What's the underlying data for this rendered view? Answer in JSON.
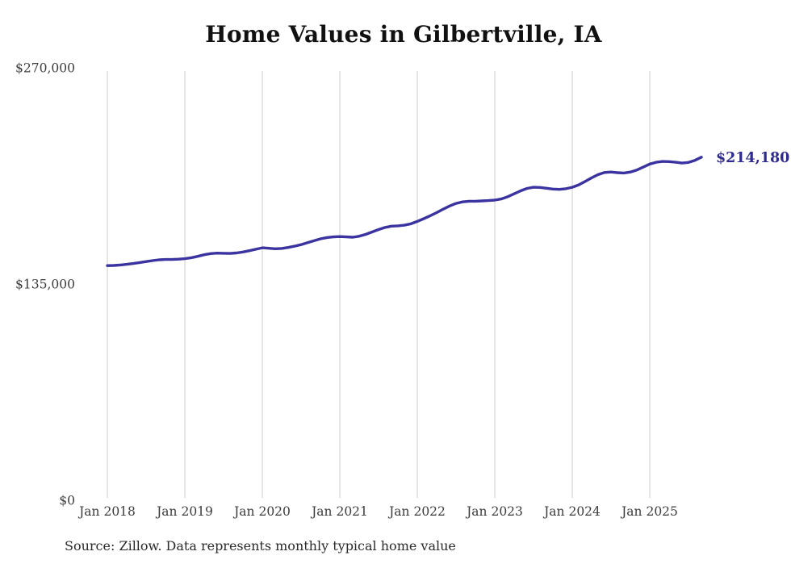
{
  "header": {
    "title": "Home Values in Gilbertville, IA"
  },
  "footer": {
    "source": "Source: Zillow. Data represents monthly typical home value"
  },
  "colors": {
    "line": "#3a33a0",
    "end_label": "#2f2a8e",
    "grid": "#cccccc",
    "axis_text": "#3c3c3c",
    "title_text": "#111111",
    "background": "#ffffff"
  },
  "chart_data": {
    "type": "line",
    "title": "Home Values in Gilbertville, IA",
    "xlabel": "",
    "ylabel": "",
    "ylim": [
      0,
      270000
    ],
    "grid": "vertical-only",
    "legend": "none",
    "end_label": "$214,180",
    "y_ticks": [
      {
        "label": "$270,000",
        "value": 270000
      },
      {
        "label": "$135,000",
        "value": 135000
      },
      {
        "label": "$0",
        "value": 0
      }
    ],
    "x_tick_labels": [
      "Jan 2018",
      "Jan 2019",
      "Jan 2020",
      "Jan 2021",
      "Jan 2022",
      "Jan 2023",
      "Jan 2024",
      "Jan 2025"
    ],
    "series": [
      {
        "name": "Monthly typical home value",
        "interval": "monthly",
        "x": [
          "2018-01",
          "2018-02",
          "2018-03",
          "2018-04",
          "2018-05",
          "2018-06",
          "2018-07",
          "2018-08",
          "2018-09",
          "2018-10",
          "2018-11",
          "2018-12",
          "2019-01",
          "2019-02",
          "2019-03",
          "2019-04",
          "2019-05",
          "2019-06",
          "2019-07",
          "2019-08",
          "2019-09",
          "2019-10",
          "2019-11",
          "2019-12",
          "2020-01",
          "2020-02",
          "2020-03",
          "2020-04",
          "2020-05",
          "2020-06",
          "2020-07",
          "2020-08",
          "2020-09",
          "2020-10",
          "2020-11",
          "2020-12",
          "2021-01",
          "2021-02",
          "2021-03",
          "2021-04",
          "2021-05",
          "2021-06",
          "2021-07",
          "2021-08",
          "2021-09",
          "2021-10",
          "2021-11",
          "2021-12",
          "2022-01",
          "2022-02",
          "2022-03",
          "2022-04",
          "2022-05",
          "2022-06",
          "2022-07",
          "2022-08",
          "2022-09",
          "2022-10",
          "2022-11",
          "2022-12",
          "2023-01",
          "2023-02",
          "2023-03",
          "2023-04",
          "2023-05",
          "2023-06",
          "2023-07",
          "2023-08",
          "2023-09",
          "2023-10",
          "2023-11",
          "2023-12",
          "2024-01",
          "2024-02",
          "2024-03",
          "2024-04",
          "2024-05",
          "2024-06",
          "2024-07",
          "2024-08",
          "2024-09",
          "2024-10",
          "2024-11",
          "2024-12",
          "2025-01",
          "2025-02",
          "2025-03",
          "2025-04",
          "2025-05",
          "2025-06",
          "2025-07",
          "2025-08",
          "2025-09"
        ],
        "values": [
          146500,
          146600,
          146900,
          147300,
          147800,
          148400,
          149000,
          149600,
          150100,
          150300,
          150300,
          150500,
          150800,
          151400,
          152300,
          153300,
          154000,
          154300,
          154200,
          154100,
          154400,
          155000,
          155800,
          156700,
          157600,
          157300,
          157000,
          157200,
          157800,
          158600,
          159600,
          160800,
          162000,
          163200,
          164000,
          164400,
          164600,
          164400,
          164200,
          164800,
          166000,
          167500,
          169000,
          170300,
          171100,
          171300,
          171700,
          172600,
          174100,
          175800,
          177600,
          179600,
          181700,
          183700,
          185300,
          186300,
          186700,
          186700,
          186900,
          187100,
          187400,
          188100,
          189500,
          191300,
          193200,
          194700,
          195400,
          195300,
          194800,
          194300,
          194100,
          194500,
          195400,
          196900,
          199000,
          201300,
          203300,
          204600,
          204900,
          204500,
          204300,
          204900,
          206200,
          208000,
          209900,
          211000,
          211500,
          211400,
          211000,
          210500,
          210900,
          212200,
          214180
        ]
      }
    ]
  }
}
